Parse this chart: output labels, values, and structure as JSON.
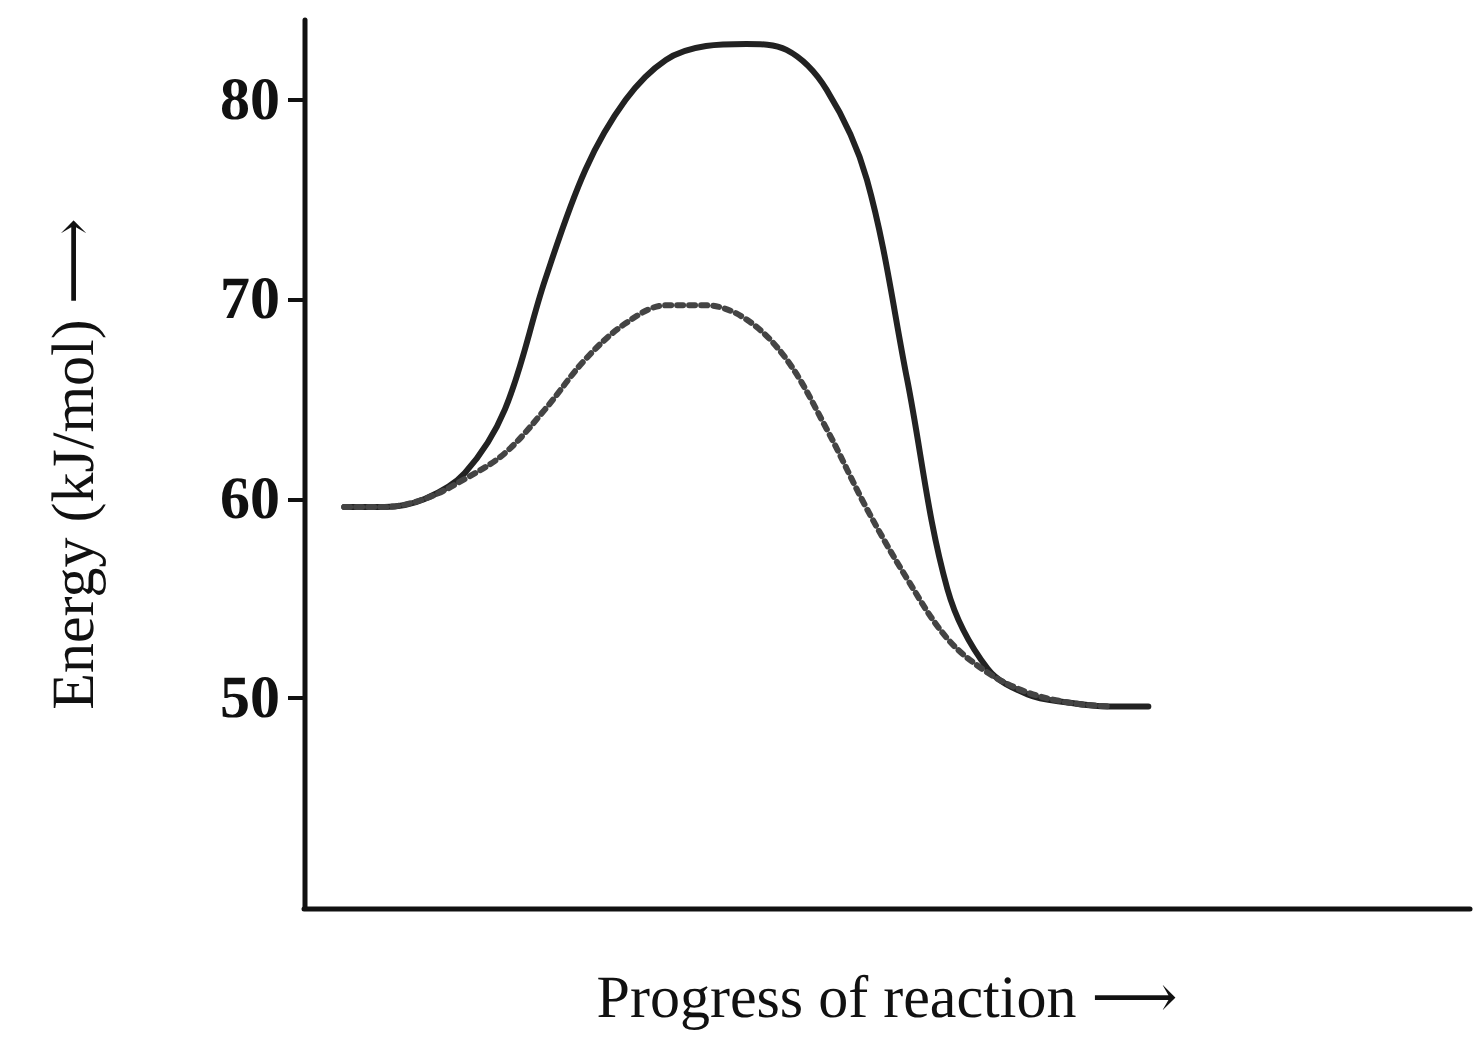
{
  "chart_data": {
    "type": "line",
    "xlabel": "Progress of reaction ⟶",
    "ylabel": "Energy (kJ/mol) ⟶",
    "categories": [
      null,
      null,
      null,
      null,
      null,
      null,
      null,
      null,
      null,
      null,
      null,
      null,
      null,
      null,
      null,
      null,
      null,
      null,
      null,
      null,
      null,
      null,
      null,
      null,
      null,
      null,
      null,
      null,
      null,
      null
    ],
    "series": [
      {
        "color": "#222222",
        "line_style": "solid",
        "values": [
          null,
          59.6,
          59.6,
          60,
          61.3,
          64.5,
          71,
          76.5,
          80,
          82,
          82.7,
          82.8,
          82.5,
          80.5,
          76,
          66,
          55.5,
          51.5,
          50.2,
          49.8,
          49.6,
          49.6,
          null,
          null,
          null,
          null,
          null,
          null,
          null,
          null
        ]
      },
      {
        "color": "#444444",
        "line_style": "dotted",
        "values": [
          null,
          59.6,
          59.6,
          60,
          61,
          62.3,
          64.5,
          67,
          68.8,
          69.7,
          69.7,
          69,
          67,
          63.5,
          59.5,
          56,
          53,
          51.3,
          50.3,
          49.8,
          49.6,
          null,
          null,
          null,
          null,
          null,
          null,
          null,
          null,
          null
        ]
      }
    ],
    "ylim": [
      39.5,
      84
    ],
    "yticks": [
      50,
      60,
      70,
      80
    ],
    "tick_labels": "y",
    "grid": false,
    "marker": "none"
  }
}
